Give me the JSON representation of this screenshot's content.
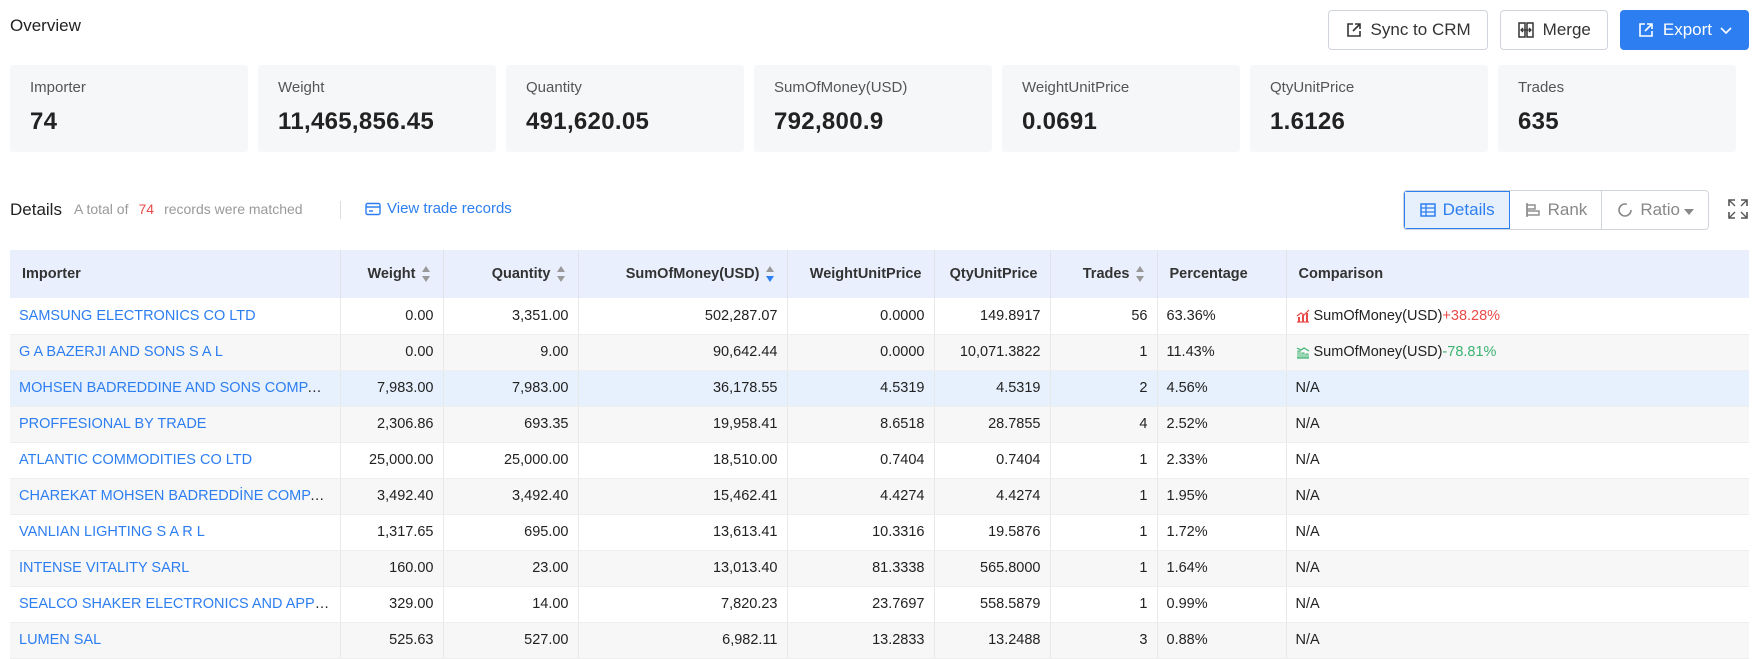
{
  "header": {
    "title": "Overview",
    "buttons": {
      "sync": "Sync to CRM",
      "merge": "Merge",
      "export": "Export"
    }
  },
  "stats": [
    {
      "label": "Importer",
      "value": "74"
    },
    {
      "label": "Weight",
      "value": "11,465,856.45"
    },
    {
      "label": "Quantity",
      "value": "491,620.05"
    },
    {
      "label": "SumOfMoney(USD)",
      "value": "792,800.9"
    },
    {
      "label": "WeightUnitPrice",
      "value": "0.0691"
    },
    {
      "label": "QtyUnitPrice",
      "value": "1.6126"
    },
    {
      "label": "Trades",
      "value": "635"
    }
  ],
  "details": {
    "title": "Details",
    "count_prefix": "A total of",
    "count": "74",
    "count_suffix": "records were matched",
    "view_link": "View trade records",
    "views": {
      "details": "Details",
      "rank": "Rank",
      "ratio": "Ratio"
    }
  },
  "table": {
    "columns": {
      "importer": "Importer",
      "weight": "Weight",
      "quantity": "Quantity",
      "sum": "SumOfMoney(USD)",
      "wup": "WeightUnitPrice",
      "qup": "QtyUnitPrice",
      "trades": "Trades",
      "percentage": "Percentage",
      "comparison": "Comparison"
    },
    "rows": [
      {
        "importer": "SAMSUNG ELECTRONICS CO LTD",
        "weight": "0.00",
        "quantity": "3,351.00",
        "sum": "502,287.07",
        "wup": "0.0000",
        "qup": "149.8917",
        "trades": "56",
        "percentage": "63.36%",
        "cmp_label": "SumOfMoney(USD)",
        "cmp_delta": "+38.28%",
        "cmp_dir": "up"
      },
      {
        "importer": "G A BAZERJI AND SONS S A L",
        "weight": "0.00",
        "quantity": "9.00",
        "sum": "90,642.44",
        "wup": "0.0000",
        "qup": "10,071.3822",
        "trades": "1",
        "percentage": "11.43%",
        "cmp_label": "SumOfMoney(USD)",
        "cmp_delta": "-78.81%",
        "cmp_dir": "down"
      },
      {
        "importer": "MOHSEN BADREDDINE AND SONS COMPANY",
        "weight": "7,983.00",
        "quantity": "7,983.00",
        "sum": "36,178.55",
        "wup": "4.5319",
        "qup": "4.5319",
        "trades": "2",
        "percentage": "4.56%",
        "cmp_label": "N/A"
      },
      {
        "importer": "PROFFESIONAL BY TRADE",
        "weight": "2,306.86",
        "quantity": "693.35",
        "sum": "19,958.41",
        "wup": "8.6518",
        "qup": "28.7855",
        "trades": "4",
        "percentage": "2.52%",
        "cmp_label": "N/A"
      },
      {
        "importer": "ATLANTIC COMMODITIES CO LTD",
        "weight": "25,000.00",
        "quantity": "25,000.00",
        "sum": "18,510.00",
        "wup": "0.7404",
        "qup": "0.7404",
        "trades": "1",
        "percentage": "2.33%",
        "cmp_label": "N/A"
      },
      {
        "importer": "CHAREKAT MOHSEN BADREDDİNE COMPANY AN...",
        "weight": "3,492.40",
        "quantity": "3,492.40",
        "sum": "15,462.41",
        "wup": "4.4274",
        "qup": "4.4274",
        "trades": "1",
        "percentage": "1.95%",
        "cmp_label": "N/A"
      },
      {
        "importer": "VANLIAN LIGHTING S A R L",
        "weight": "1,317.65",
        "quantity": "695.00",
        "sum": "13,613.41",
        "wup": "10.3316",
        "qup": "19.5876",
        "trades": "1",
        "percentage": "1.72%",
        "cmp_label": "N/A"
      },
      {
        "importer": "INTENSE VITALITY SARL",
        "weight": "160.00",
        "quantity": "23.00",
        "sum": "13,013.40",
        "wup": "81.3338",
        "qup": "565.8000",
        "trades": "1",
        "percentage": "1.64%",
        "cmp_label": "N/A"
      },
      {
        "importer": "SEALCO SHAKER ELECTRONICS AND APPLIANCES...",
        "weight": "329.00",
        "quantity": "14.00",
        "sum": "7,820.23",
        "wup": "23.7697",
        "qup": "558.5879",
        "trades": "1",
        "percentage": "0.99%",
        "cmp_label": "N/A"
      },
      {
        "importer": "LUMEN SAL",
        "weight": "525.63",
        "quantity": "527.00",
        "sum": "6,982.11",
        "wup": "13.2833",
        "qup": "13.2488",
        "trades": "3",
        "percentage": "0.88%",
        "cmp_label": "N/A"
      }
    ]
  }
}
